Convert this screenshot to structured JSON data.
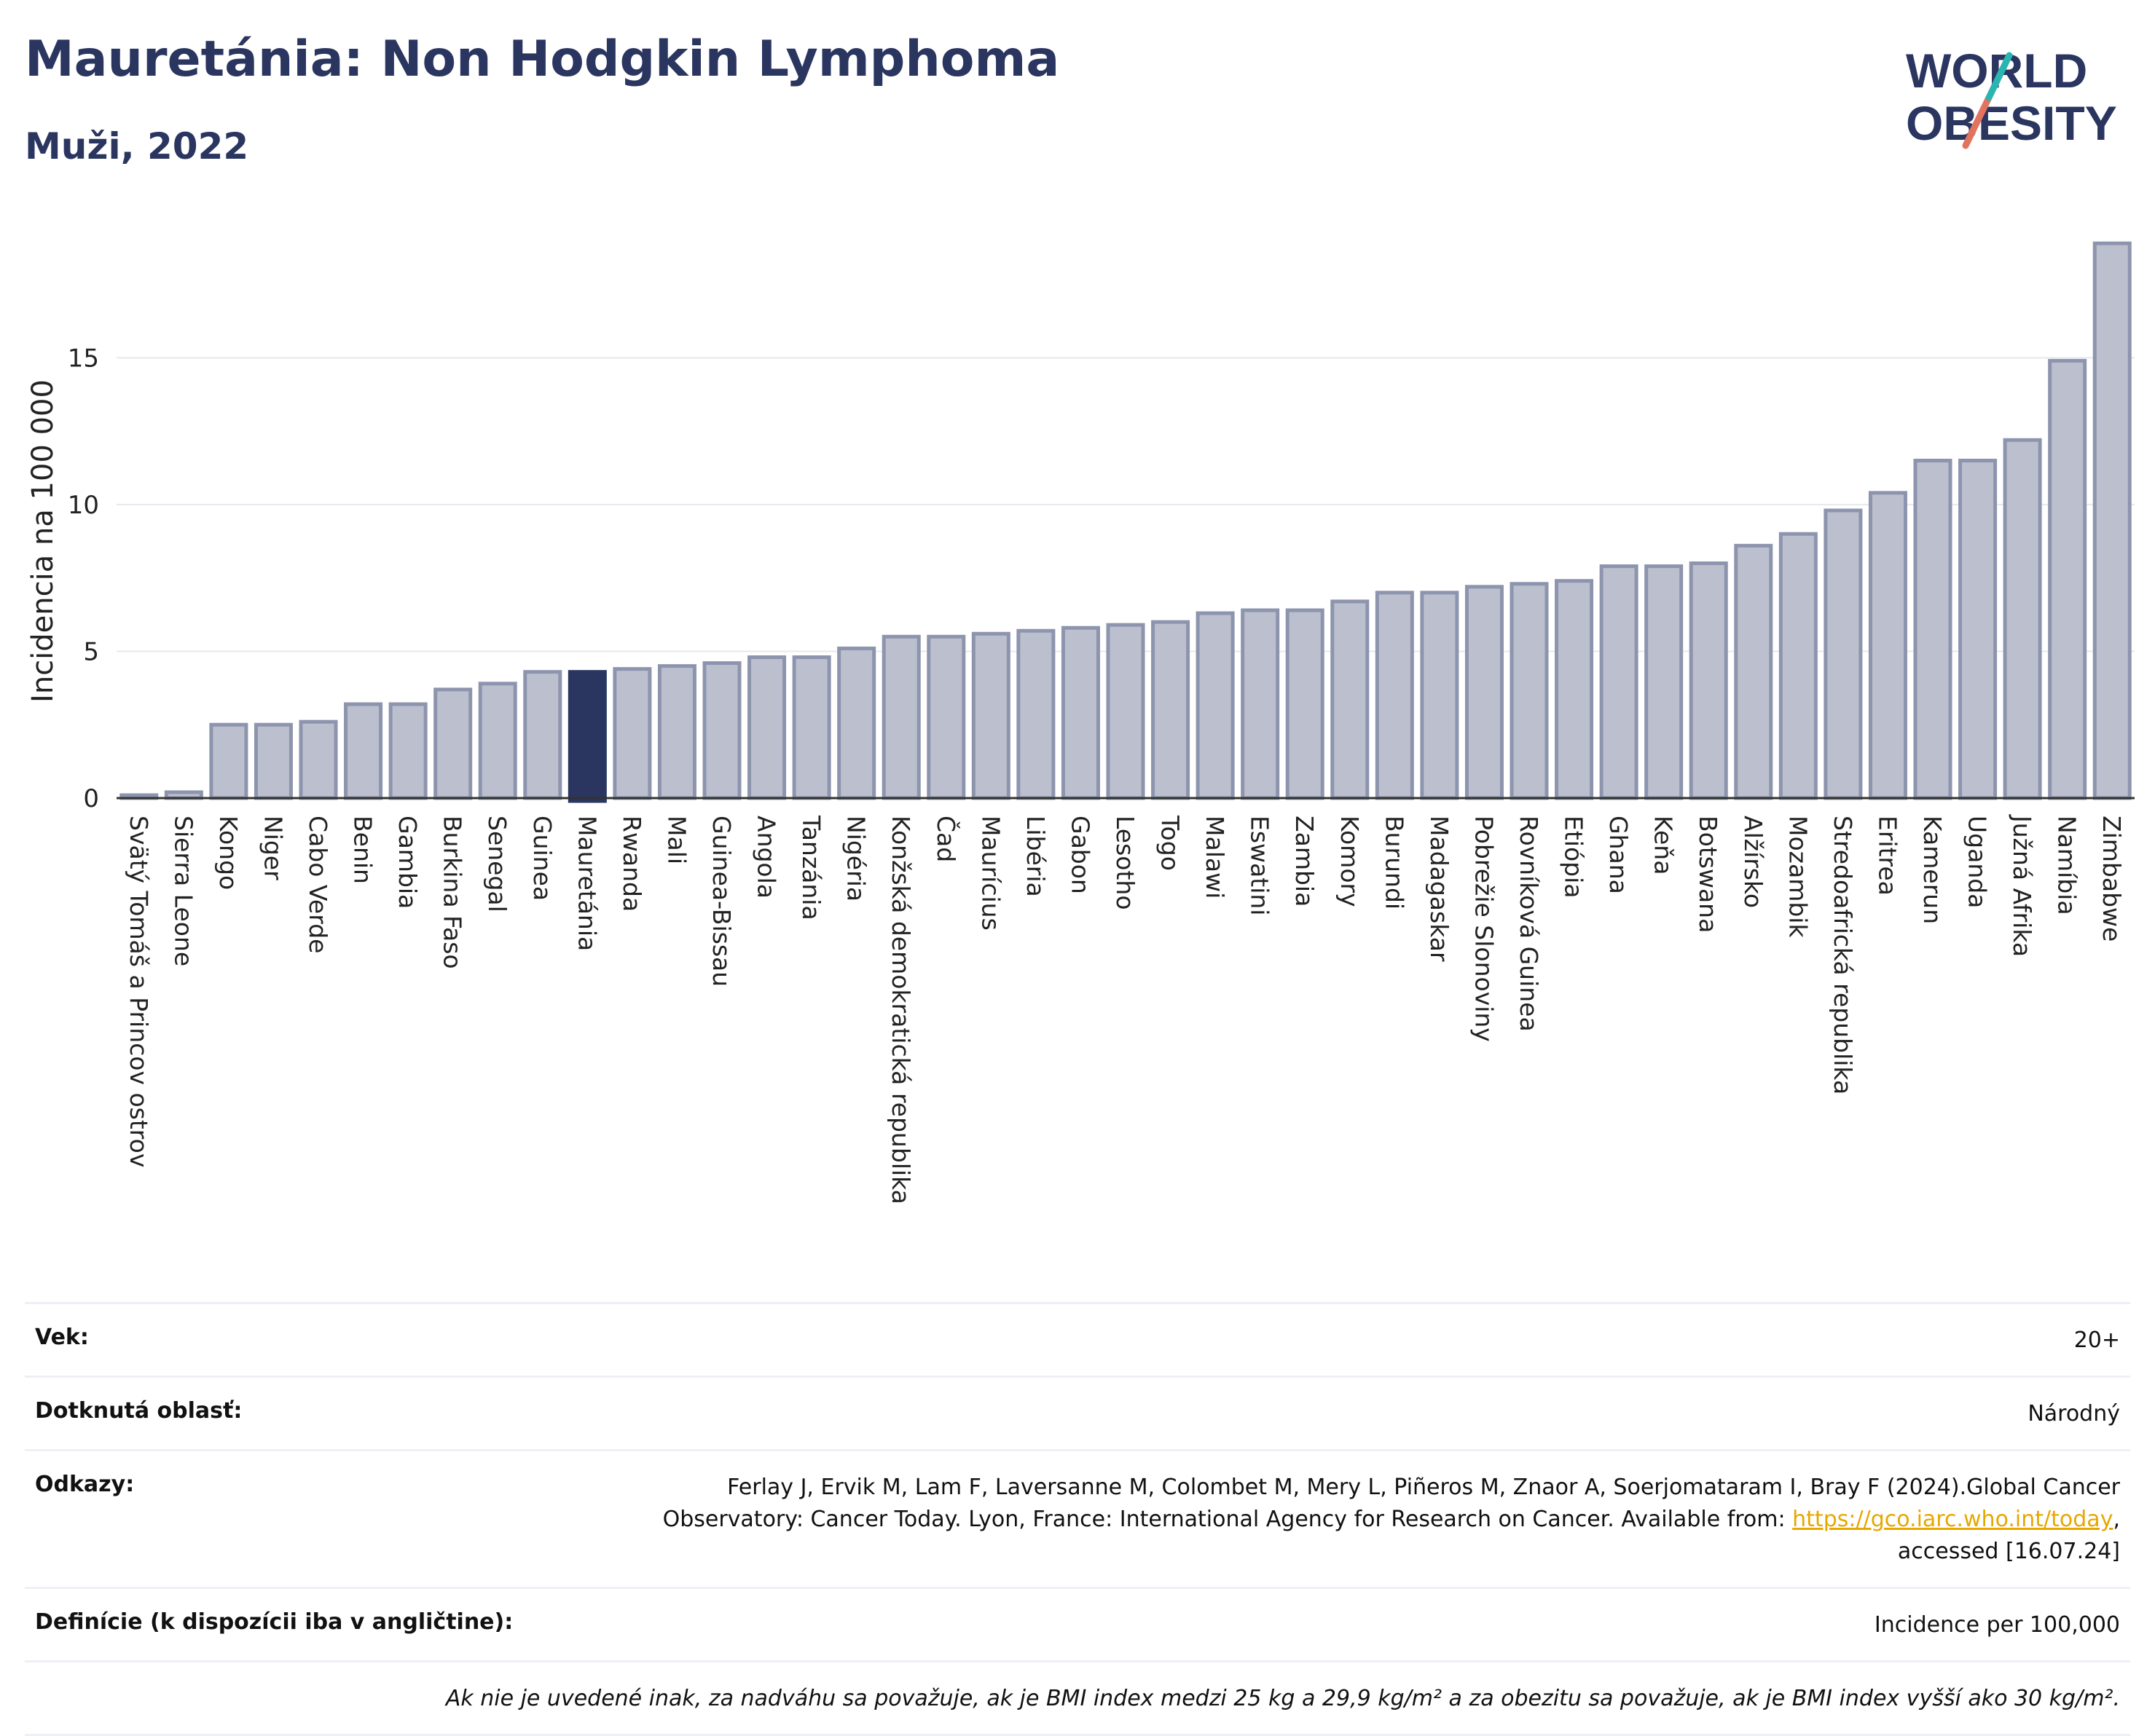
{
  "header": {
    "title": "Mauretánia: Non Hodgkin Lymphoma",
    "subtitle": "Muži, 2022"
  },
  "logo": {
    "line1": "WORLD",
    "line2": "OBESITY",
    "accent_colors": [
      "#2bb5b0",
      "#e2735f"
    ]
  },
  "chart_data": {
    "type": "bar",
    "title": "Mauretánia: Non Hodgkin Lymphoma",
    "subtitle": "Muži, 2022",
    "xlabel": "",
    "ylabel": "Incidencia na 100 000",
    "ylim": [
      0,
      19.5
    ],
    "yticks": [
      0,
      5,
      10,
      15
    ],
    "grid": true,
    "highlight": "Mauretánia",
    "colors": {
      "bar": "#bcc0ce",
      "bar_border": "#8d94ad",
      "highlight": "#2a3560"
    },
    "categories": [
      "Svätý Tomáš a Princov ostrov",
      "Sierra Leone",
      "Kongo",
      "Niger",
      "Cabo Verde",
      "Benin",
      "Gambia",
      "Burkina Faso",
      "Senegal",
      "Guinea",
      "Mauretánia",
      "Rwanda",
      "Mali",
      "Guinea-Bissau",
      "Angola",
      "Tanzánia",
      "Nigéria",
      "Konžská demokratická republika",
      "Čad",
      "Maurícius",
      "Libéria",
      "Gabon",
      "Lesotho",
      "Togo",
      "Malawi",
      "Eswatini",
      "Zambia",
      "Komory",
      "Burundi",
      "Madagaskar",
      "Pobrežie Slonoviny",
      "Rovníková Guinea",
      "Etiópia",
      "Ghana",
      "Keňa",
      "Botswana",
      "Alžírsko",
      "Mozambik",
      "Stredoafrická republika",
      "Eritrea",
      "Kamerun",
      "Uganda",
      "Južná Afrika",
      "Namíbia",
      "Zimbabwe"
    ],
    "values": [
      0.1,
      0.2,
      2.5,
      2.5,
      2.6,
      3.2,
      3.2,
      3.7,
      3.9,
      4.3,
      4.3,
      4.4,
      4.5,
      4.6,
      4.8,
      4.8,
      5.1,
      5.5,
      5.5,
      5.6,
      5.7,
      5.8,
      5.9,
      6.0,
      6.3,
      6.4,
      6.4,
      6.7,
      7.0,
      7.0,
      7.2,
      7.3,
      7.4,
      7.9,
      7.9,
      8.0,
      8.6,
      9.0,
      9.8,
      10.4,
      11.5,
      11.5,
      12.2,
      14.9,
      18.9
    ]
  },
  "info": {
    "age_label": "Vek:",
    "age_value": "20+",
    "area_label": "Dotknutá oblasť:",
    "area_value": "Národný",
    "refs_label": "Odkazy:",
    "refs_line1": "Ferlay J, Ervik M, Lam F, Laversanne M, Colombet M, Mery L, Piñeros M, Znaor A, Soerjomataram I, Bray F (2024).Global Cancer",
    "refs_line2": "Observatory: Cancer Today. Lyon, France: International Agency for Research on Cancer. Available from: ",
    "refs_link": "https://gco.iarc.who.int/today",
    "refs_line3": "accessed [16.07.24]",
    "def_label": "Definície (k dispozícii iba v angličtine):",
    "def_value": "Incidence per 100,000",
    "note": "Ak nie je uvedené inak, za nadváhu sa považuje, ak je BMI index medzi 25 kg a 29,9 kg/m² a za obezitu sa považuje, ak je BMI index vyšší ako 30 kg/m²."
  }
}
